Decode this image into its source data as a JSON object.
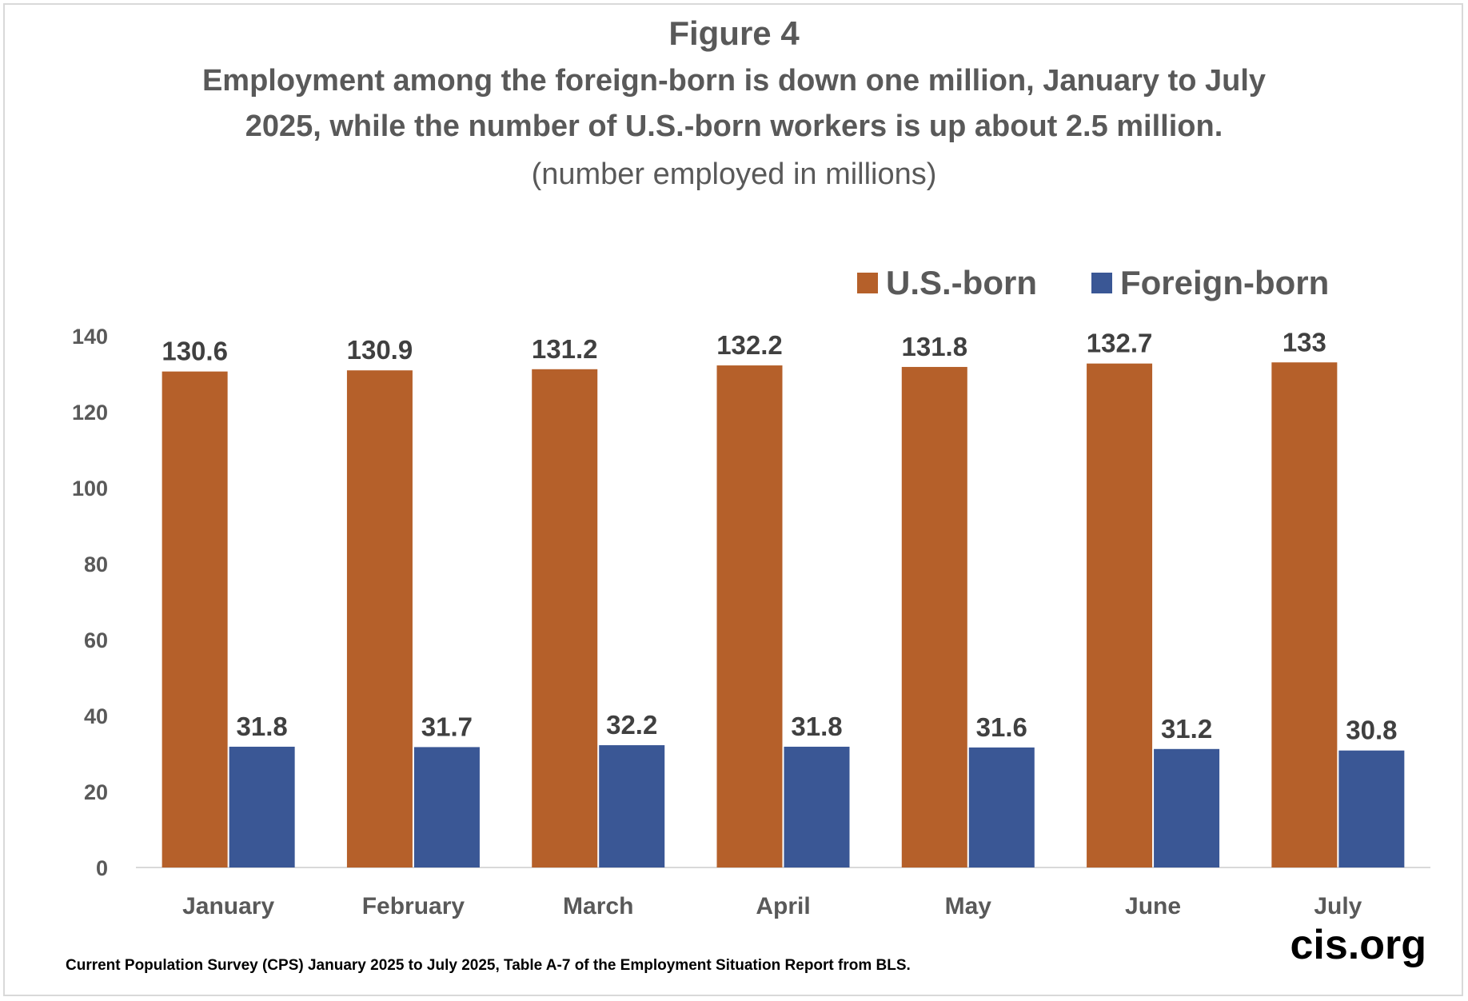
{
  "header": {
    "title": "Figure 4",
    "subtitle_line1": "Employment among the foreign-born is down one million, January to July",
    "subtitle_line2": "2025, while the number of U.S.-born workers is up about 2.5 million.",
    "unit_note": "(number employed in millions)"
  },
  "footer": {
    "source": "Current Population Survey (CPS) January 2025 to July 2025, Table A-7 of the Employment Situation Report from BLS.",
    "brand": "cis.org"
  },
  "chart_data": {
    "type": "bar",
    "categories": [
      "January",
      "February",
      "March",
      "April",
      "May",
      "June",
      "July"
    ],
    "series": [
      {
        "name": "U.S.-born",
        "color": "#B5602A",
        "values": [
          130.6,
          130.9,
          131.2,
          132.2,
          131.8,
          132.7,
          133
        ]
      },
      {
        "name": "Foreign-born",
        "color": "#3A5795",
        "values": [
          31.8,
          31.7,
          32.2,
          31.8,
          31.6,
          31.2,
          30.8
        ]
      }
    ],
    "ylim": [
      0,
      140
    ],
    "yticks": [
      0,
      20,
      40,
      60,
      80,
      100,
      120,
      140
    ],
    "grid": false,
    "legend": "top-right",
    "data_labels": true
  }
}
